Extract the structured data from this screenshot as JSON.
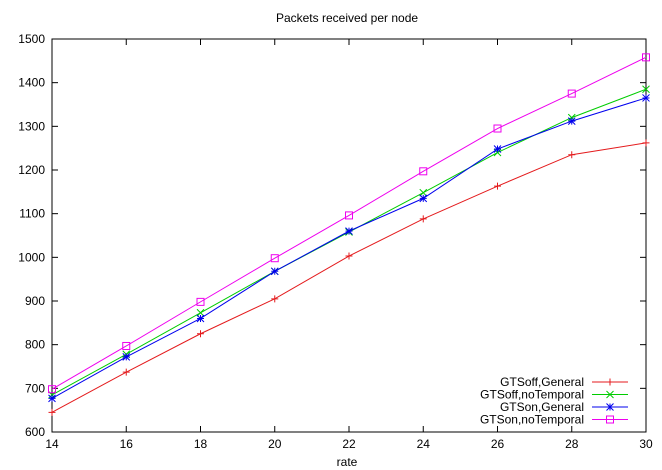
{
  "chart_data": {
    "type": "line",
    "title": "Packets received per node",
    "xlabel": "rate",
    "ylabel": "",
    "xlim": [
      14,
      30
    ],
    "ylim": [
      600,
      1500
    ],
    "x_ticks": [
      14,
      16,
      18,
      20,
      22,
      24,
      26,
      28,
      30
    ],
    "y_ticks": [
      600,
      700,
      800,
      900,
      1000,
      1100,
      1200,
      1300,
      1400,
      1500
    ],
    "grid": false,
    "legend_position": "bottom-right",
    "x": [
      14,
      16,
      18,
      20,
      22,
      24,
      26,
      28,
      30
    ],
    "series": [
      {
        "name": "GTSoff,General",
        "color": "#e41a1c",
        "marker": "plus",
        "values": [
          645,
          737,
          825,
          905,
          1003,
          1088,
          1163,
          1235,
          1262
        ]
      },
      {
        "name": "GTSoff,noTemporal",
        "color": "#00cc00",
        "marker": "x",
        "values": [
          685,
          778,
          873,
          968,
          1058,
          1148,
          1240,
          1320,
          1385
        ]
      },
      {
        "name": "GTSon,General",
        "color": "#0000ee",
        "marker": "star",
        "values": [
          677,
          772,
          860,
          968,
          1060,
          1135,
          1248,
          1312,
          1365
        ]
      },
      {
        "name": "GTSon,noTemporal",
        "color": "#ee00ee",
        "marker": "square",
        "values": [
          698,
          797,
          898,
          998,
          1096,
          1197,
          1295,
          1375,
          1458
        ]
      }
    ]
  }
}
